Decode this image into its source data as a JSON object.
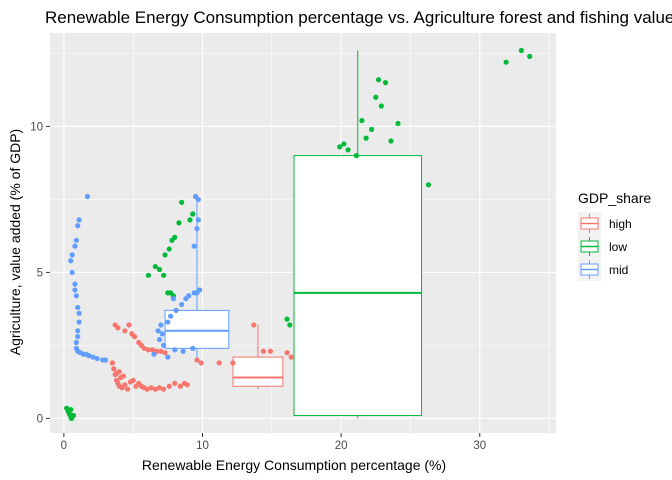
{
  "chart_data": {
    "type": "scatter",
    "title": "Renewable Energy Consumption percentage vs. Agriculture forest and fishing value",
    "xlabel": "Renewable Energy Consumption percentage (%)",
    "ylabel": "Agriculture, value added (% of GDP)",
    "xlim": [
      -1,
      35.5
    ],
    "ylim": [
      -0.5,
      13.2
    ],
    "x_ticks": [
      0,
      10,
      20,
      30
    ],
    "y_ticks": [
      0,
      5,
      10
    ],
    "x_tick_labels": [
      "0",
      "10",
      "20",
      "30"
    ],
    "y_tick_labels": [
      "0",
      "5",
      "10"
    ],
    "grid": true,
    "legend": {
      "title": "GDP_share",
      "position": "right"
    },
    "colors": {
      "high": "#F8766D",
      "low": "#00BA38",
      "mid": "#619CFF",
      "panel": "#EBEBEB",
      "grid": "#FFFFFF"
    },
    "series": [
      {
        "name": "high",
        "points": [
          [
            3.7,
            3.2
          ],
          [
            3.9,
            3.1
          ],
          [
            4.4,
            3.0
          ],
          [
            4.7,
            3.2
          ],
          [
            4.9,
            2.9
          ],
          [
            5.1,
            2.8
          ],
          [
            5.4,
            2.6
          ],
          [
            5.6,
            2.5
          ],
          [
            5.8,
            2.4
          ],
          [
            6.1,
            2.35
          ],
          [
            6.4,
            2.35
          ],
          [
            6.7,
            2.3
          ],
          [
            7.0,
            2.3
          ],
          [
            7.3,
            2.25
          ],
          [
            3.5,
            1.9
          ],
          [
            3.6,
            1.7
          ],
          [
            3.7,
            1.5
          ],
          [
            3.8,
            1.3
          ],
          [
            3.9,
            1.2
          ],
          [
            4.0,
            1.1
          ],
          [
            4.2,
            1.05
          ],
          [
            4.4,
            1.15
          ],
          [
            4.6,
            1.0
          ],
          [
            4.8,
            1.25
          ],
          [
            5.0,
            1.3
          ],
          [
            5.2,
            1.1
          ],
          [
            5.4,
            1.2
          ],
          [
            5.6,
            1.1
          ],
          [
            5.8,
            1.05
          ],
          [
            6.0,
            1.0
          ],
          [
            6.3,
            1.05
          ],
          [
            6.6,
            1.0
          ],
          [
            6.9,
            1.05
          ],
          [
            7.2,
            1.0
          ],
          [
            7.6,
            1.1
          ],
          [
            8.0,
            1.2
          ],
          [
            8.4,
            1.1
          ],
          [
            8.7,
            1.2
          ],
          [
            8.9,
            1.15
          ],
          [
            3.8,
            1.55
          ],
          [
            4.0,
            1.6
          ],
          [
            4.1,
            1.4
          ],
          [
            4.3,
            1.45
          ],
          [
            13.7,
            3.2
          ],
          [
            14.4,
            2.3
          ],
          [
            14.9,
            2.3
          ],
          [
            16.1,
            2.25
          ],
          [
            16.4,
            2.1
          ],
          [
            11.2,
            1.9
          ],
          [
            12.2,
            1.9
          ],
          [
            9.6,
            2.0
          ],
          [
            9.9,
            1.9
          ]
        ],
        "box": {
          "xmin": 12.2,
          "xmax": 15.8,
          "q1": 1.1,
          "median": 1.4,
          "q3": 2.1,
          "ymin": 1.0,
          "ymax": 3.2
        }
      },
      {
        "name": "low",
        "points": [
          [
            0.2,
            0.35
          ],
          [
            0.3,
            0.25
          ],
          [
            0.4,
            0.15
          ],
          [
            0.5,
            0.05
          ],
          [
            0.55,
            0.0
          ],
          [
            0.6,
            0.1
          ],
          [
            0.7,
            0.1
          ],
          [
            0.5,
            0.3
          ],
          [
            6.6,
            5.2
          ],
          [
            6.9,
            5.1
          ],
          [
            7.2,
            4.9
          ],
          [
            7.3,
            5.6
          ],
          [
            7.6,
            5.8
          ],
          [
            7.8,
            6.1
          ],
          [
            8.0,
            6.2
          ],
          [
            8.3,
            6.7
          ],
          [
            8.5,
            7.4
          ],
          [
            7.5,
            4.3
          ],
          [
            7.7,
            4.3
          ],
          [
            7.9,
            4.2
          ],
          [
            6.1,
            4.9
          ],
          [
            9.1,
            6.8
          ],
          [
            9.3,
            7.0
          ],
          [
            16.1,
            3.4
          ],
          [
            16.3,
            3.2
          ],
          [
            19.9,
            9.3
          ],
          [
            20.2,
            9.4
          ],
          [
            20.5,
            9.2
          ],
          [
            21.1,
            9.0
          ],
          [
            21.5,
            10.2
          ],
          [
            21.8,
            9.6
          ],
          [
            22.2,
            9.9
          ],
          [
            22.5,
            11.0
          ],
          [
            22.7,
            11.6
          ],
          [
            22.9,
            10.7
          ],
          [
            23.2,
            11.5
          ],
          [
            23.6,
            9.5
          ],
          [
            24.1,
            10.1
          ],
          [
            26.3,
            8.0
          ],
          [
            31.9,
            12.2
          ],
          [
            33.0,
            12.6
          ],
          [
            33.6,
            12.4
          ]
        ],
        "box": {
          "xmin": 16.6,
          "xmax": 25.8,
          "q1": 0.1,
          "median": 4.3,
          "q3": 9.0,
          "ymin": 0.0,
          "ymax": 12.6
        }
      },
      {
        "name": "mid",
        "points": [
          [
            1.7,
            7.6
          ],
          [
            1.1,
            6.8
          ],
          [
            1.0,
            6.6
          ],
          [
            0.9,
            6.1
          ],
          [
            0.8,
            5.9
          ],
          [
            0.6,
            5.6
          ],
          [
            0.5,
            5.4
          ],
          [
            0.6,
            5.0
          ],
          [
            0.8,
            4.6
          ],
          [
            0.8,
            4.4
          ],
          [
            0.9,
            4.2
          ],
          [
            1.0,
            3.8
          ],
          [
            1.1,
            3.6
          ],
          [
            1.1,
            3.3
          ],
          [
            1.0,
            3.0
          ],
          [
            1.0,
            2.8
          ],
          [
            0.9,
            2.6
          ],
          [
            0.9,
            2.4
          ],
          [
            1.0,
            2.3
          ],
          [
            1.2,
            2.25
          ],
          [
            1.4,
            2.2
          ],
          [
            1.6,
            2.2
          ],
          [
            1.8,
            2.15
          ],
          [
            2.1,
            2.1
          ],
          [
            2.4,
            2.05
          ],
          [
            2.8,
            2.0
          ],
          [
            3.0,
            2.0
          ],
          [
            6.8,
            3.0
          ],
          [
            7.0,
            3.2
          ],
          [
            7.1,
            2.9
          ],
          [
            6.9,
            2.7
          ],
          [
            7.2,
            2.5
          ],
          [
            7.5,
            3.3
          ],
          [
            7.7,
            3.5
          ],
          [
            8.1,
            3.7
          ],
          [
            8.5,
            3.9
          ],
          [
            8.8,
            4.1
          ],
          [
            9.0,
            4.2
          ],
          [
            9.4,
            4.3
          ],
          [
            9.6,
            4.3
          ],
          [
            9.8,
            4.4
          ],
          [
            7.9,
            4.1
          ],
          [
            9.4,
            5.9
          ],
          [
            9.6,
            6.5
          ],
          [
            9.7,
            6.8
          ],
          [
            9.5,
            7.6
          ],
          [
            9.7,
            7.5
          ],
          [
            9.3,
            2.4
          ],
          [
            8.6,
            2.3
          ],
          [
            8.0,
            2.35
          ],
          [
            6.5,
            2.2
          ],
          [
            7.5,
            2.1
          ]
        ],
        "box": {
          "xmin": 7.3,
          "xmax": 11.9,
          "q1": 2.4,
          "median": 3.0,
          "q3": 3.7,
          "ymin": 2.0,
          "ymax": 7.6
        }
      }
    ]
  }
}
